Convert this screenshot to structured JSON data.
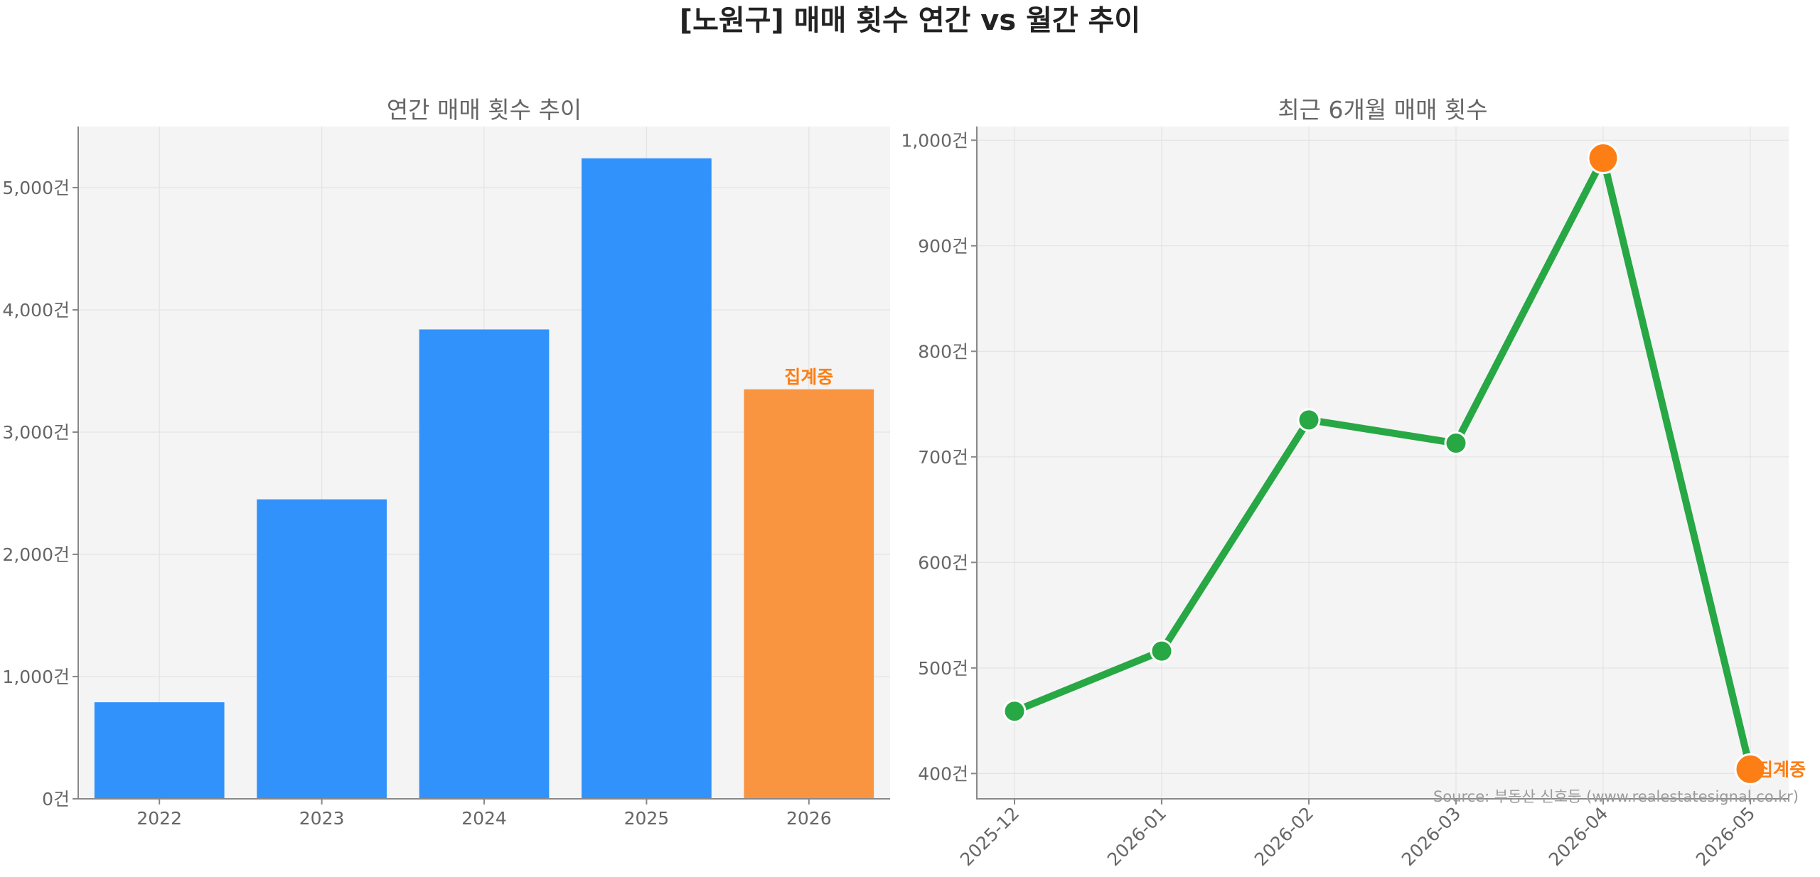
{
  "figure": {
    "title": "[노원구] 매매 횟수 연간 vs 월간 추이",
    "source": "Source: 부동산 신호등 (www.realestatesignal.co.kr)"
  },
  "colors": {
    "bar_primary": "#3192fb",
    "bar_highlight": "#f99540",
    "line": "#28a745",
    "marker_highlight": "#fd7e14",
    "status_text": "#fd7e14",
    "panel_bg": "#f4f4f4"
  },
  "chart_data": [
    {
      "type": "bar",
      "title": "연간 매매 횟수 추이",
      "categories": [
        "2022",
        "2023",
        "2024",
        "2025",
        "2026"
      ],
      "values": [
        790,
        2450,
        3840,
        5240,
        3350
      ],
      "unit_suffix": "건",
      "ylim": [
        0,
        5500
      ],
      "yticks": [
        0,
        1000,
        2000,
        3000,
        4000,
        5000
      ],
      "ytick_labels": [
        "0건",
        "1,000건",
        "2,000건",
        "3,000건",
        "4,000건",
        "5,000건"
      ],
      "highlight_index": 4,
      "annotation": {
        "index": 4,
        "text": "집계중"
      },
      "grid": true
    },
    {
      "type": "line",
      "title": "최근 6개월 매매 횟수",
      "categories": [
        "2025-12",
        "2026-01",
        "2026-02",
        "2026-03",
        "2026-04",
        "2026-05"
      ],
      "values": [
        459,
        516,
        735,
        713,
        983,
        404
      ],
      "unit_suffix": "건",
      "ylim": [
        376,
        1013
      ],
      "yticks": [
        400,
        500,
        600,
        700,
        800,
        900,
        1000
      ],
      "ytick_labels": [
        "400건",
        "500건",
        "600건",
        "700건",
        "800건",
        "900건",
        "1,000건"
      ],
      "highlight_indices": [
        4,
        5
      ],
      "annotation": {
        "index": 5,
        "text": "집계중"
      },
      "grid": true
    }
  ]
}
